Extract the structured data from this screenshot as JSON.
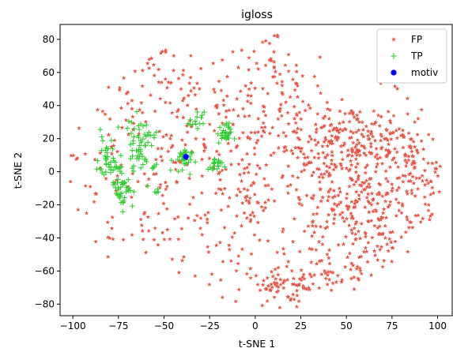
{
  "chart_data": {
    "type": "scatter",
    "title": "igloss",
    "xlabel": "t-SNE 1",
    "ylabel": "t-SNE 2",
    "xlim": [
      -107,
      108
    ],
    "ylim": [
      -87,
      89
    ],
    "xticks": [
      -100,
      -75,
      -50,
      -25,
      0,
      25,
      50,
      75,
      100
    ],
    "yticks": [
      -80,
      -60,
      -40,
      -20,
      0,
      20,
      40,
      60,
      80
    ],
    "grid": false,
    "legend_position": "top-right",
    "series": [
      {
        "name": "FP",
        "marker": "star",
        "color": "#e15a4b",
        "clusters": [
          {
            "cx": -65,
            "cy": 75,
            "sx": 6,
            "sy": 4,
            "n": 25
          },
          {
            "cx": -52,
            "cy": 70,
            "sx": 3,
            "sy": 4,
            "n": 8
          },
          {
            "cx": -95,
            "cy": 10,
            "sx": 3,
            "sy": 3,
            "n": 4
          },
          {
            "cx": -88,
            "cy": 38,
            "sx": 3,
            "sy": 2,
            "n": 3
          },
          {
            "cx": -92,
            "cy": -22,
            "sx": 3,
            "sy": 6,
            "n": 4
          },
          {
            "cx": -45,
            "cy": 15,
            "sx": 38,
            "sy": 45,
            "n": 360
          },
          {
            "cx": 60,
            "cy": -20,
            "sx": 28,
            "sy": 30,
            "n": 520
          },
          {
            "cx": 50,
            "cy": 20,
            "sx": 15,
            "sy": 10,
            "n": 120
          },
          {
            "cx": 85,
            "cy": 10,
            "sx": 8,
            "sy": 10,
            "n": 60
          },
          {
            "cx": 15,
            "cy": -70,
            "sx": 10,
            "sy": 5,
            "n": 55
          },
          {
            "cx": 0,
            "cy": -5,
            "sx": 20,
            "sy": 40,
            "n": 110
          },
          {
            "cx": 45,
            "cy": -65,
            "sx": 8,
            "sy": 6,
            "n": 20
          },
          {
            "cx": 12,
            "cy": 45,
            "sx": 14,
            "sy": 25,
            "n": 60
          }
        ]
      },
      {
        "name": "TP",
        "marker": "plus",
        "color": "#33cc33",
        "clusters": [
          {
            "cx": -82,
            "cy": 8,
            "sx": 2,
            "sy": 7,
            "n": 30
          },
          {
            "cx": -63,
            "cy": 18,
            "sx": 4,
            "sy": 7,
            "n": 55
          },
          {
            "cx": -73,
            "cy": -8,
            "sx": 3,
            "sy": 7,
            "n": 45
          },
          {
            "cx": -40,
            "cy": 7,
            "sx": 2.5,
            "sy": 4,
            "n": 30
          },
          {
            "cx": -17,
            "cy": 23,
            "sx": 2,
            "sy": 3,
            "n": 28
          },
          {
            "cx": -22,
            "cy": 4,
            "sx": 2,
            "sy": 2.5,
            "n": 18
          },
          {
            "cx": -32,
            "cy": 30,
            "sx": 2,
            "sy": 3,
            "n": 14
          },
          {
            "cx": -55,
            "cy": 2,
            "sx": 1.5,
            "sy": 1.5,
            "n": 5
          },
          {
            "cx": -55,
            "cy": -11,
            "sx": 1.5,
            "sy": 1.5,
            "n": 5
          },
          {
            "cx": -77,
            "cy": 3,
            "sx": 2,
            "sy": 2,
            "n": 8
          }
        ]
      },
      {
        "name": "motiv",
        "marker": "circle",
        "color": "#0000ff",
        "points": [
          {
            "x": -38,
            "y": 9
          }
        ]
      }
    ]
  }
}
